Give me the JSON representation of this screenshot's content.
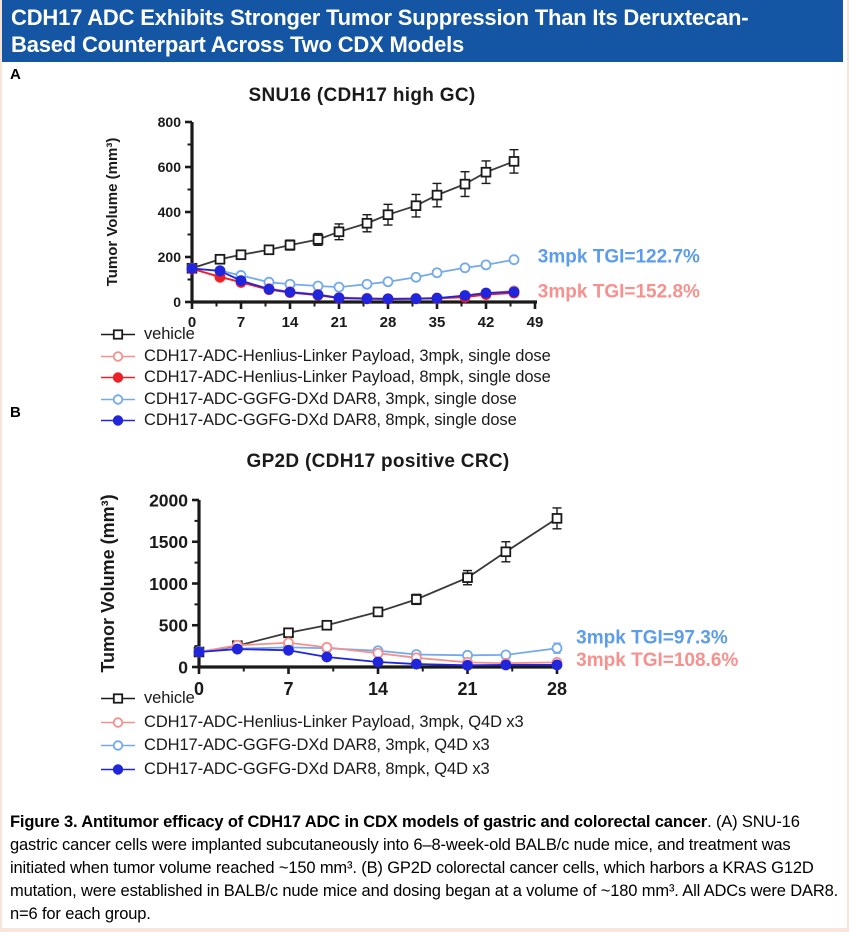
{
  "header": {
    "title_line1": "CDH17 ADC Exhibits Stronger Tumor Suppression Than Its Deruxtecan-",
    "title_line2": "Based Counterpart Across Two CDX Models",
    "bg_color": "#1456A4",
    "text_color": "#FFFFFF"
  },
  "panels": {
    "a": {
      "label": "A",
      "title": "SNU16 (CDH17 high GC)",
      "legend": [
        {
          "marker": "square-open",
          "color": "#1a1a1a",
          "label": "vehicle"
        },
        {
          "marker": "circle-open",
          "color": "#F4918E",
          "label": "CDH17-ADC-Henlius-Linker Payload, 3mpk, single dose"
        },
        {
          "marker": "circle-filled",
          "color": "#EC2027",
          "label": "CDH17-ADC-Henlius-Linker Payload, 8mpk, single dose"
        },
        {
          "marker": "circle-open",
          "color": "#74AAEC",
          "label": "CDH17-ADC-GGFG-DXd DAR8, 3mpk, single dose"
        },
        {
          "marker": "circle-filled",
          "color": "#2125DC",
          "label": "CDH17-ADC-GGFG-DXd DAR8, 8mpk, single dose"
        }
      ]
    },
    "b": {
      "label": "B",
      "title": "GP2D (CDH17 positive CRC)",
      "legend": [
        {
          "marker": "square-open",
          "color": "#1a1a1a",
          "label": "vehicle"
        },
        {
          "marker": "circle-open",
          "color": "#F4918E",
          "label": "CDH17-ADC-Henlius-Linker Payload, 3mpk, Q4D x3"
        },
        {
          "marker": "circle-open",
          "color": "#74AAEC",
          "label": "CDH17-ADC-GGFG-DXd DAR8, 3mpk, Q4D x3"
        },
        {
          "marker": "circle-filled",
          "color": "#2125DC",
          "label": "CDH17-ADC-GGFG-DXd DAR8, 8mpk, Q4D x3"
        }
      ]
    }
  },
  "chart_data": [
    {
      "id": "a",
      "type": "line",
      "title": "SNU16 (CDH17 high GC)",
      "xlabel": "",
      "ylabel": "Tumor Volume (mm³)",
      "xlim": [
        0,
        49
      ],
      "ylim": [
        0,
        800
      ],
      "xticks": [
        0,
        7,
        14,
        21,
        28,
        35,
        42,
        49
      ],
      "yticks": [
        0,
        200,
        400,
        600,
        800
      ],
      "x_minor_step": 3.5,
      "y_minor_step": 100,
      "grid": false,
      "x": [
        0,
        4,
        7,
        11,
        14,
        18,
        21,
        25,
        28,
        32,
        35,
        39,
        42,
        46
      ],
      "series": [
        {
          "name": "vehicle",
          "marker": "square-open",
          "color": "#1a1a1a",
          "line_color": "#3a3a3a",
          "values": [
            150,
            190,
            210,
            232,
            253,
            278,
            312,
            350,
            388,
            428,
            475,
            524,
            577,
            625
          ],
          "err": [
            12,
            16,
            18,
            20,
            22,
            26,
            35,
            38,
            46,
            50,
            52,
            55,
            50,
            52
          ]
        },
        {
          "name": "CDH17-ADC-GGFG-DXd DAR8, 3mpk",
          "marker": "circle-open",
          "color": "#74AAEC",
          "values": [
            148,
            140,
            118,
            88,
            79,
            71,
            66,
            79,
            90,
            110,
            130,
            152,
            165,
            188
          ],
          "err": [
            8,
            9,
            9,
            8,
            7,
            7,
            7,
            7,
            8,
            9,
            11,
            11,
            12,
            12
          ]
        },
        {
          "name": "CDH17-ADC-Henlius-Linker Payload, 3mpk",
          "marker": "circle-open",
          "color": "#F4918E",
          "values": [
            150,
            108,
            92,
            60,
            46,
            34,
            20,
            17,
            15,
            16,
            18,
            24,
            38,
            50
          ],
          "err": [
            8,
            8,
            8,
            6,
            5,
            5,
            4,
            4,
            4,
            4,
            4,
            5,
            6,
            7
          ]
        },
        {
          "name": "CDH17-ADC-Henlius-Linker Payload, 8mpk",
          "marker": "circle-filled",
          "color": "#EC2027",
          "values": [
            147,
            112,
            87,
            55,
            42,
            30,
            17,
            14,
            13,
            14,
            16,
            21,
            33,
            40
          ],
          "err": [
            8,
            8,
            7,
            6,
            5,
            4,
            4,
            3,
            3,
            3,
            4,
            4,
            5,
            6
          ]
        },
        {
          "name": "CDH17-ADC-GGFG-DXd DAR8, 8mpk",
          "marker": "circle-filled",
          "color": "#2125DC",
          "values": [
            149,
            138,
            95,
            57,
            44,
            32,
            18,
            15,
            14,
            15,
            17,
            29,
            40,
            45
          ],
          "err": [
            8,
            8,
            7,
            6,
            5,
            4,
            4,
            3,
            3,
            3,
            4,
            4,
            5,
            6
          ]
        }
      ],
      "annotations": [
        {
          "text": "3mpk TGI=122.7%",
          "color": "#5B9CEC",
          "x": 49.4,
          "y": 200
        },
        {
          "text": "3mpk TGI=152.8%",
          "color": "#F8908D",
          "x": 49.4,
          "y": 45
        }
      ]
    },
    {
      "id": "b",
      "type": "line",
      "title": "GP2D (CDH17 positive CRC)",
      "xlabel": "",
      "ylabel": "Tumor Volume (mm³)",
      "xlim": [
        0,
        28
      ],
      "ylim": [
        0,
        2000
      ],
      "xticks": [
        0,
        7,
        14,
        21,
        28
      ],
      "yticks": [
        0,
        500,
        1000,
        1500,
        2000
      ],
      "x_minor_step": 3.5,
      "y_minor_step": 250,
      "grid": false,
      "x": [
        0,
        3,
        7,
        10,
        14,
        17,
        21,
        24,
        28
      ],
      "series": [
        {
          "name": "vehicle",
          "marker": "square-open",
          "color": "#1a1a1a",
          "line_color": "#3a3a3a",
          "values": [
            180,
            255,
            410,
            500,
            660,
            810,
            1070,
            1380,
            1780
          ],
          "err": [
            20,
            25,
            40,
            35,
            50,
            60,
            85,
            120,
            125
          ]
        },
        {
          "name": "CDH17-ADC-GGFG-DXd DAR8, 3mpk",
          "marker": "circle-open",
          "color": "#74AAEC",
          "values": [
            185,
            220,
            235,
            225,
            195,
            150,
            140,
            145,
            225
          ],
          "err": [
            15,
            15,
            20,
            20,
            22,
            20,
            25,
            40,
            60
          ]
        },
        {
          "name": "CDH17-ADC-Henlius-Linker Payload, 3mpk",
          "marker": "circle-open",
          "color": "#F4918E",
          "values": [
            180,
            260,
            290,
            235,
            165,
            110,
            55,
            45,
            55
          ],
          "err": [
            15,
            20,
            28,
            22,
            20,
            15,
            12,
            10,
            12
          ]
        },
        {
          "name": "CDH17-ADC-GGFG-DXd DAR8, 8mpk",
          "marker": "circle-filled",
          "color": "#2125DC",
          "values": [
            180,
            215,
            200,
            120,
            60,
            35,
            20,
            25,
            25
          ],
          "err": [
            12,
            15,
            15,
            12,
            10,
            8,
            6,
            6,
            6
          ]
        }
      ],
      "annotations": [
        {
          "text": "3mpk TGI=97.3%",
          "color": "#5B9CEC",
          "x": 29.5,
          "y": 350
        },
        {
          "text": "3mpk TGI=108.6%",
          "color": "#F8908D",
          "x": 29.5,
          "y": 75
        }
      ]
    }
  ],
  "caption": {
    "bold": "Figure 3. Antitumor efficacy of CDH17 ADC in CDX models of gastric and colorectal cancer",
    "after_bold": ".",
    "body": "(A) SNU-16 gastric cancer cells were implanted subcutaneously into 6–8-week-old BALB/c nude mice, and treatment was initiated when tumor volume reached ~150 mm³. (B) GP2D colorectal cancer cells, which harbors a KRAS G12D mutation, were established in BALB/c nude mice and dosing began at a volume of ~180 mm³. All ADCs were DAR8. n=6 for each group."
  }
}
